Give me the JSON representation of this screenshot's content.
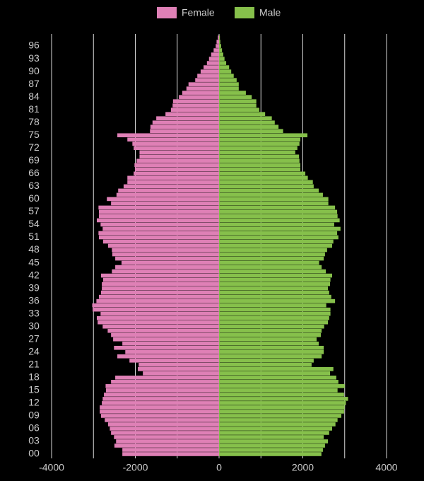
{
  "chart_data": {
    "type": "bar",
    "orientation": "horizontal",
    "categories": [
      "00",
      null,
      null,
      "03",
      null,
      null,
      "06",
      null,
      null,
      "09",
      null,
      null,
      "12",
      null,
      null,
      "15",
      null,
      null,
      "18",
      null,
      null,
      "21",
      null,
      null,
      "24",
      null,
      null,
      "27",
      null,
      null,
      "30",
      null,
      null,
      "33",
      null,
      null,
      "36",
      null,
      null,
      "39",
      null,
      null,
      "42",
      null,
      null,
      "45",
      null,
      null,
      "48",
      null,
      null,
      "51",
      null,
      null,
      "54",
      null,
      null,
      "57",
      null,
      null,
      "60",
      null,
      null,
      "63",
      null,
      null,
      "66",
      null,
      null,
      "69",
      null,
      null,
      "72",
      null,
      null,
      "75",
      null,
      null,
      "78",
      null,
      null,
      "81",
      null,
      null,
      "84",
      null,
      null,
      "87",
      null,
      null,
      "90",
      null,
      null,
      "93",
      null,
      null,
      "96",
      null,
      null
    ],
    "series": [
      {
        "name": "Female",
        "color": "#df80b6",
        "values": [
          -2310,
          -2310,
          -2500,
          -2460,
          -2510,
          -2580,
          -2610,
          -2650,
          -2730,
          -2820,
          -2850,
          -2850,
          -2800,
          -2780,
          -2750,
          -2700,
          -2710,
          -2580,
          -2480,
          -1820,
          -1940,
          -1920,
          -2140,
          -2430,
          -2240,
          -2510,
          -2310,
          -2530,
          -2580,
          -2660,
          -2780,
          -2900,
          -2920,
          -2830,
          -3020,
          -3030,
          -2930,
          -2870,
          -2820,
          -2800,
          -2800,
          -2770,
          -2820,
          -2560,
          -2480,
          -2330,
          -2480,
          -2550,
          -2560,
          -2650,
          -2770,
          -2870,
          -2880,
          -2780,
          -2830,
          -2920,
          -2870,
          -2870,
          -2880,
          -2580,
          -2680,
          -2450,
          -2410,
          -2280,
          -2190,
          -2190,
          -2040,
          -2010,
          -2020,
          -1970,
          -1900,
          -1900,
          -2040,
          -2070,
          -2190,
          -2430,
          -1650,
          -1640,
          -1590,
          -1500,
          -1280,
          -1150,
          -1110,
          -1100,
          -960,
          -880,
          -780,
          -730,
          -570,
          -520,
          -440,
          -370,
          -290,
          -240,
          -190,
          -130,
          -80,
          -60,
          -30
        ]
      },
      {
        "name": "Male",
        "color": "#86c04b",
        "values": [
          2445,
          2480,
          2530,
          2600,
          2500,
          2630,
          2700,
          2780,
          2830,
          2920,
          2985,
          3000,
          3030,
          3080,
          2985,
          2830,
          3000,
          2850,
          2800,
          2650,
          2730,
          2210,
          2260,
          2450,
          2500,
          2500,
          2380,
          2330,
          2430,
          2450,
          2510,
          2600,
          2630,
          2660,
          2660,
          2560,
          2770,
          2680,
          2630,
          2600,
          2650,
          2660,
          2700,
          2550,
          2450,
          2390,
          2500,
          2530,
          2580,
          2700,
          2730,
          2850,
          2820,
          2900,
          2750,
          2880,
          2830,
          2820,
          2770,
          2610,
          2610,
          2480,
          2380,
          2260,
          2240,
          2120,
          2060,
          1940,
          1940,
          1920,
          1910,
          1820,
          1870,
          1920,
          1940,
          2110,
          1530,
          1420,
          1330,
          1260,
          1100,
          960,
          890,
          890,
          780,
          640,
          470,
          470,
          420,
          350,
          290,
          240,
          170,
          130,
          100,
          70,
          50,
          30,
          20
        ]
      }
    ],
    "xlim": [
      -4000,
      4000
    ],
    "xticks": [
      -4000,
      -2000,
      0,
      2000,
      4000
    ],
    "minor_xticks": [
      -3000,
      -1000,
      1000,
      3000
    ],
    "grid": true,
    "legend": "top"
  }
}
